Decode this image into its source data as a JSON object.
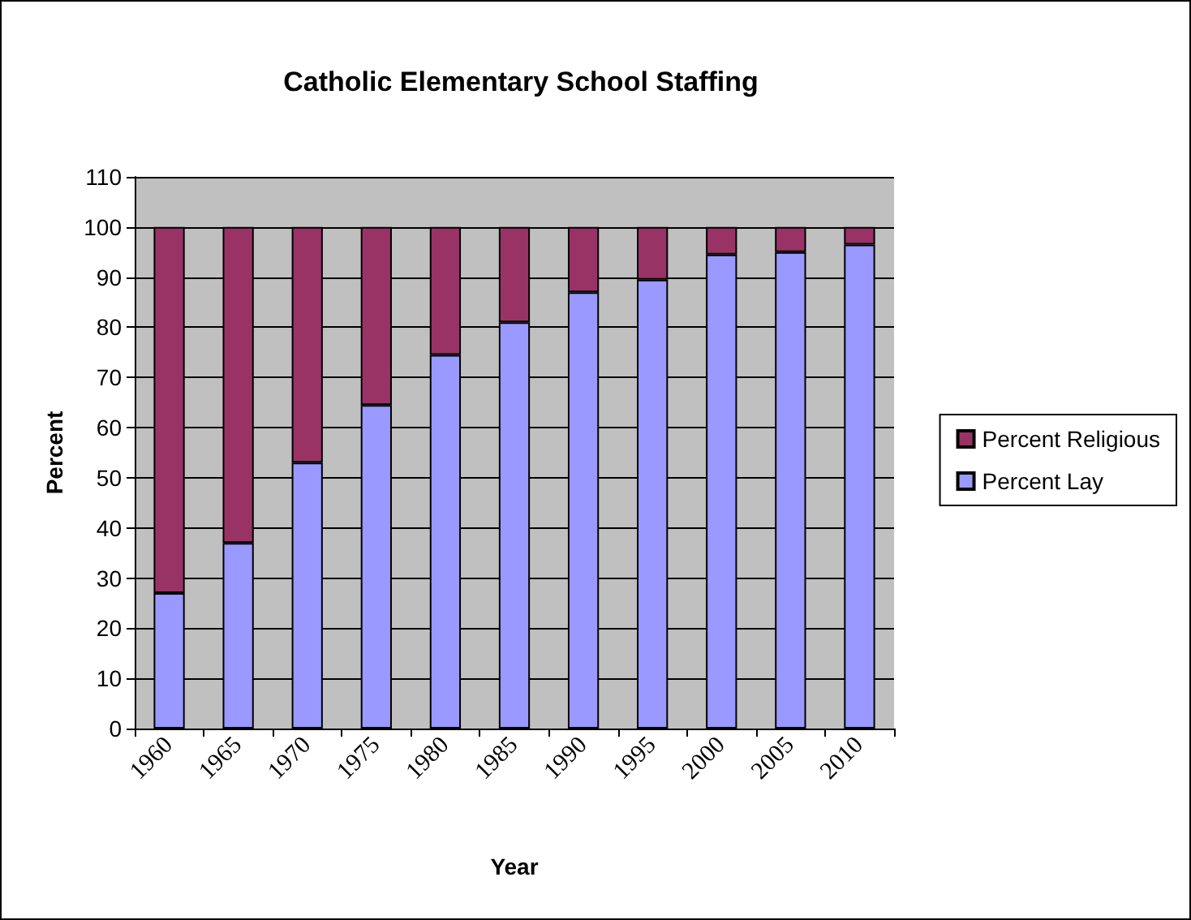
{
  "chart_data": {
    "type": "bar",
    "title": "Catholic Elementary School Staffing",
    "xlabel": "Year",
    "ylabel": "Percent",
    "categories": [
      "1960",
      "1965",
      "1970",
      "1975",
      "1980",
      "1985",
      "1990",
      "1995",
      "2000",
      "2005",
      "2010"
    ],
    "stacked": true,
    "series": [
      {
        "name": "Percent Lay",
        "color": "#9999ff",
        "values": [
          27,
          37,
          53,
          64.5,
          74.5,
          81,
          87,
          89.5,
          94.5,
          95,
          96.5
        ]
      },
      {
        "name": "Percent Religious",
        "color": "#993366",
        "values": [
          73,
          63,
          47,
          35.5,
          25.5,
          19,
          13,
          10.5,
          5.5,
          5,
          3.5
        ]
      }
    ],
    "ylim": [
      0,
      110
    ],
    "yticks": [
      0,
      10,
      20,
      30,
      40,
      50,
      60,
      70,
      80,
      90,
      100,
      110
    ],
    "grid": "y",
    "legend": "right"
  }
}
